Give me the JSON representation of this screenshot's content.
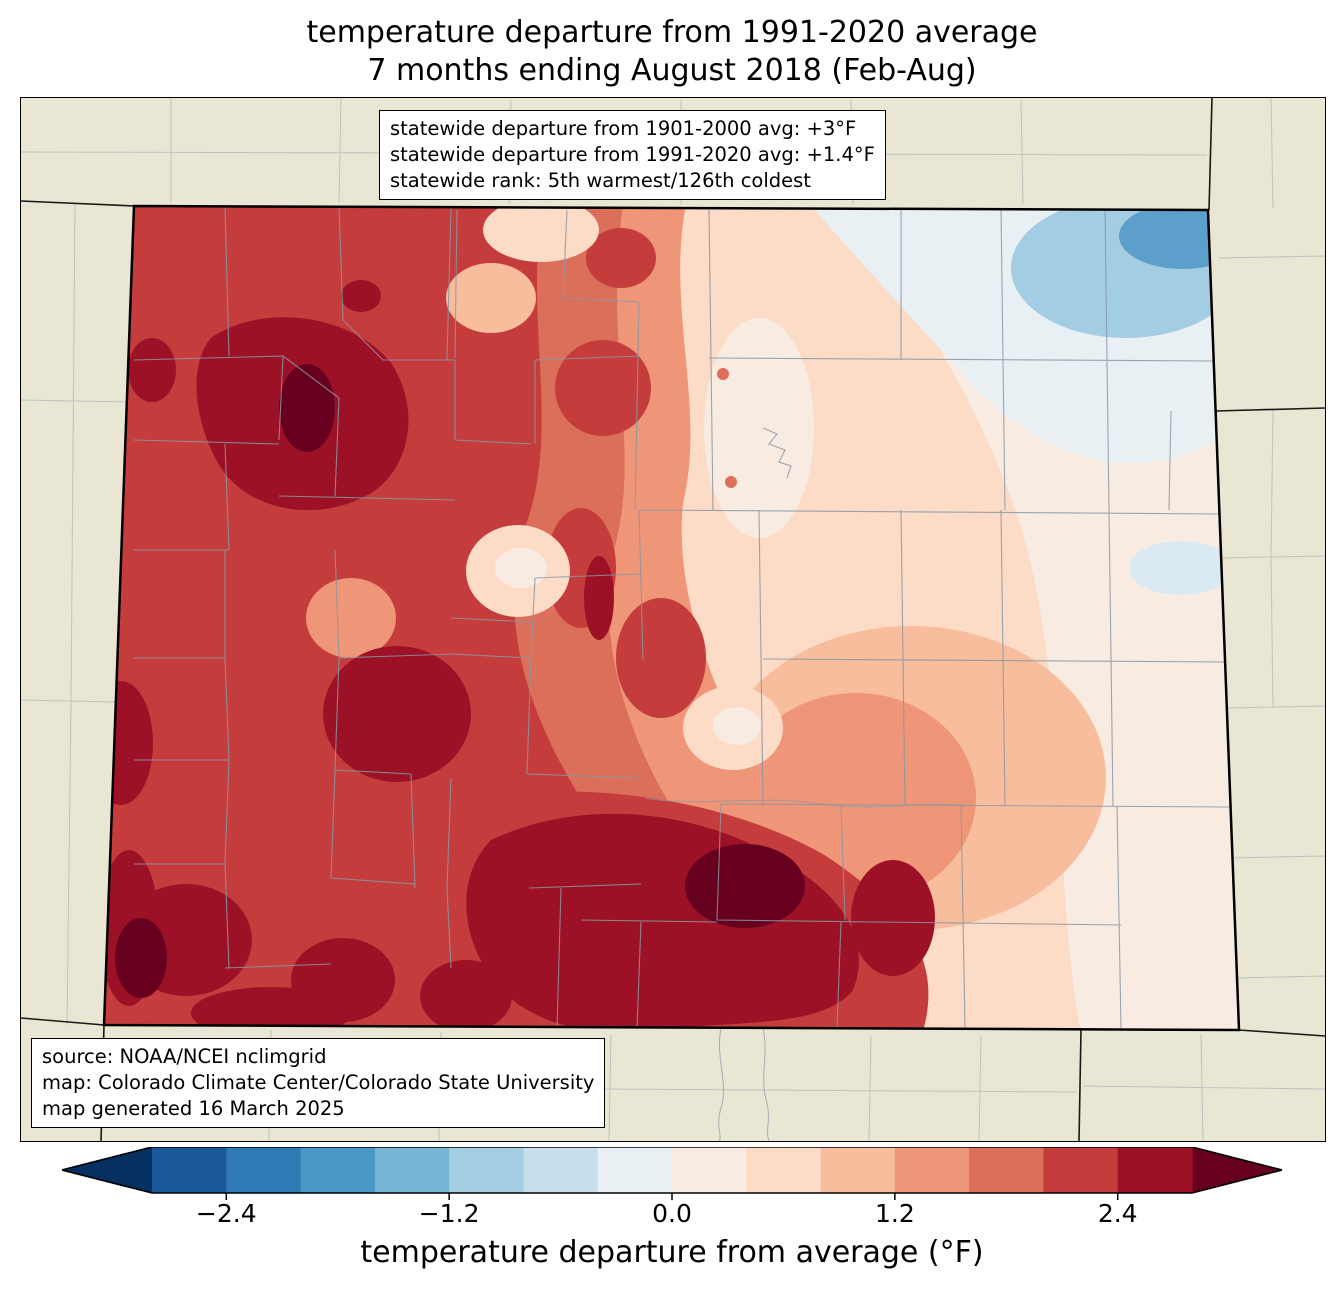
{
  "title": {
    "line1": "temperature departure from 1991-2020 average",
    "line2": "7 months ending August 2018 (Feb-Aug)"
  },
  "stats_box": {
    "line1": "statewide departure from 1901-2000 avg: +3°F",
    "line2": "statewide departure from 1991-2020 avg: +1.4°F",
    "line3": "statewide rank: 5th warmest/126th coldest"
  },
  "source_box": {
    "line1": "source: NOAA/NCEI nclimgrid",
    "line2": "map: Colorado Climate Center/Colorado State University",
    "line3": "map generated 16 March 2025"
  },
  "colorbar": {
    "label": "temperature departure from average (°F)",
    "ticks": [
      "−2.4",
      "−1.2",
      "0.0",
      "1.2",
      "2.4"
    ],
    "tick_values": [
      -2.4,
      -1.2,
      0.0,
      1.2,
      2.4
    ],
    "tick_positions": [
      0.0714286,
      0.2857143,
      0.5,
      0.7142857,
      0.9285714
    ],
    "range": [
      -2.8,
      2.8
    ],
    "segment_colors": [
      "#1a5899",
      "#2f79b5",
      "#4b97c6",
      "#77b5d5",
      "#a2cde3",
      "#c7deed",
      "#e9f0f4",
      "#f8ece2",
      "#fcdbc7",
      "#f8bd9c",
      "#ee9677",
      "#dc6f59",
      "#c43c3c",
      "#9d1127"
    ],
    "arrow_left_color": "#053061",
    "arrow_right_color": "#67001f"
  },
  "map": {
    "region": "Colorado",
    "background_color": "#e9e6d3",
    "state_border_color": "#000000",
    "county_line_color": "#8a97a3"
  }
}
